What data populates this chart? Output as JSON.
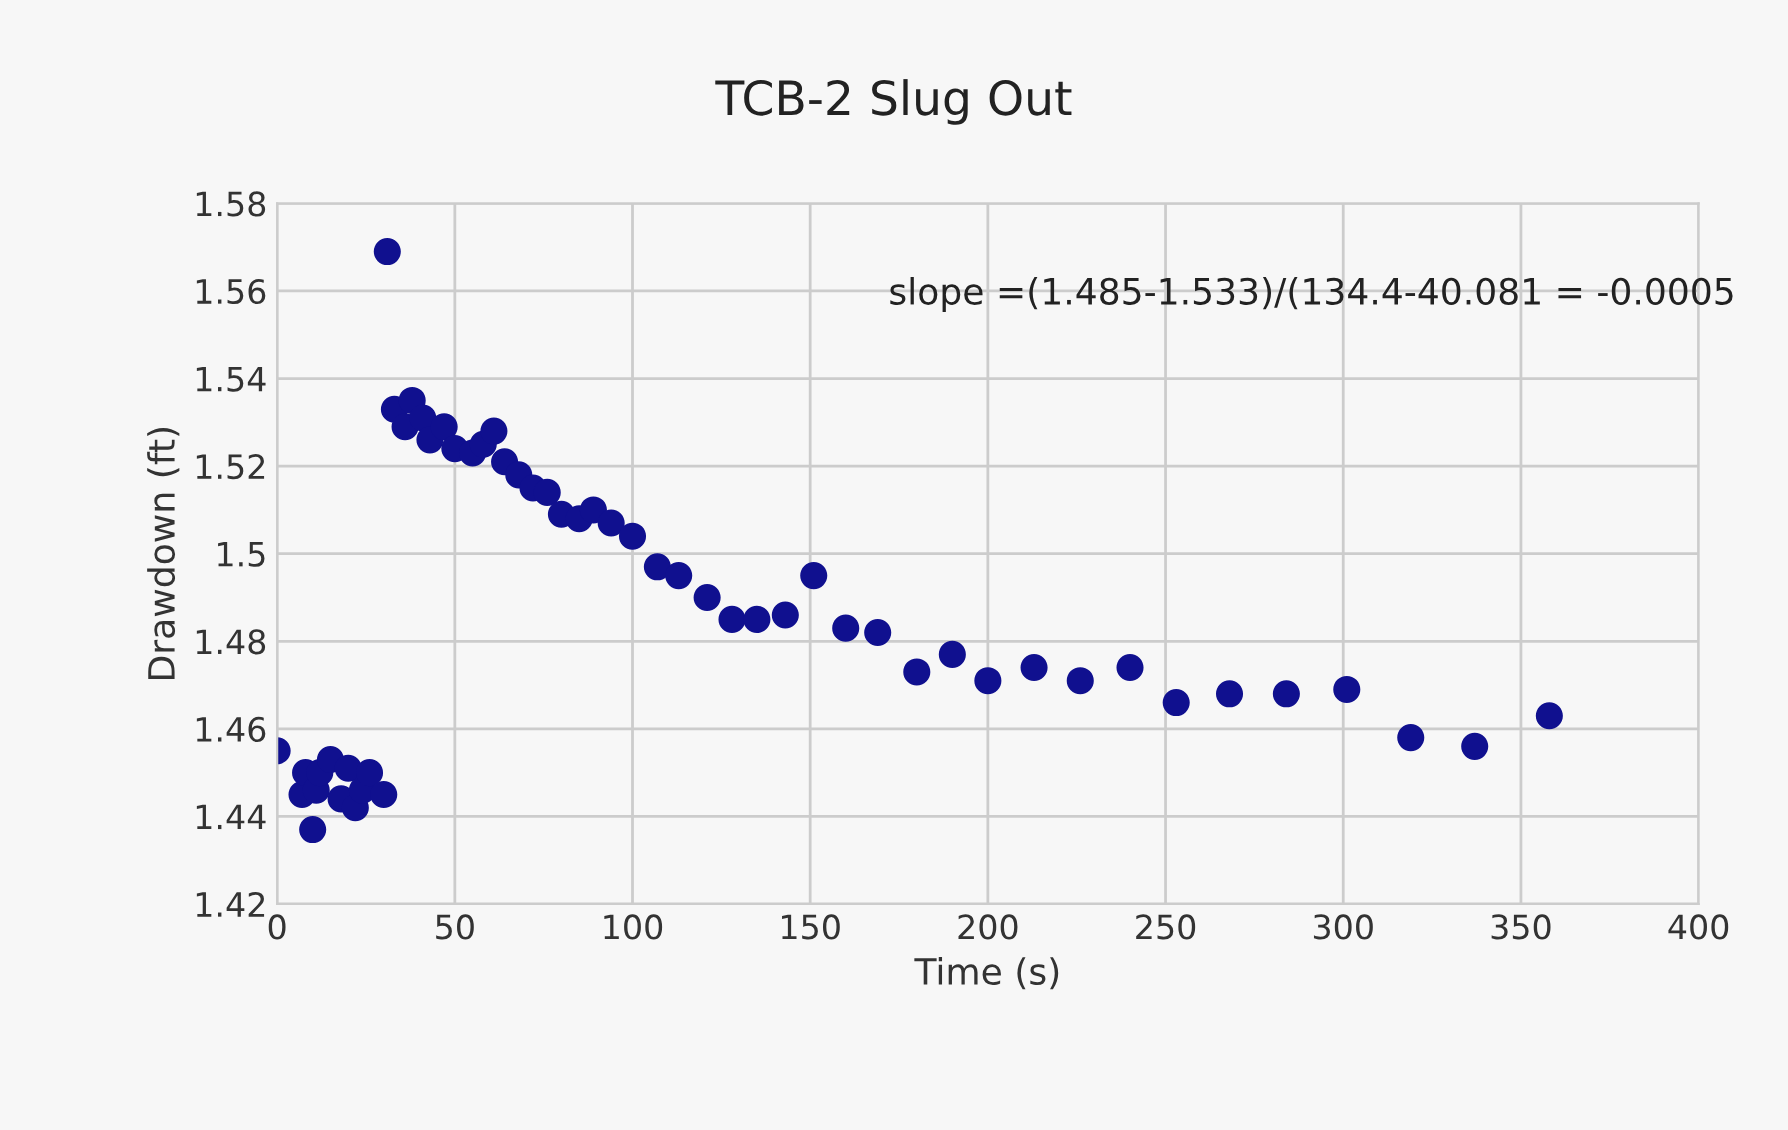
{
  "chart_data": {
    "type": "scatter",
    "title": "TCB-2 Slug Out",
    "xlabel": "Time (s)",
    "ylabel": "Drawdown (ft)",
    "annotations": [
      "slope =(1.485-1.533)/(134.4-40.081 = -0.0005"
    ],
    "x": [
      0,
      7,
      8,
      10,
      11,
      12,
      15,
      18,
      20,
      22,
      24,
      26,
      30,
      31,
      33,
      36,
      38,
      41,
      43,
      47,
      50,
      55,
      58,
      61,
      64,
      68,
      72,
      76,
      80,
      85,
      89,
      94,
      100,
      107,
      113,
      121,
      128,
      135,
      143,
      151,
      160,
      169,
      180,
      190,
      200,
      213,
      226,
      240,
      253,
      268,
      284,
      301,
      319,
      337,
      358
    ],
    "series": [
      {
        "color": "#10108f",
        "values": [
          1.455,
          1.445,
          1.45,
          1.437,
          1.446,
          1.45,
          1.453,
          1.444,
          1.451,
          1.442,
          1.446,
          1.45,
          1.445,
          1.569,
          1.533,
          1.529,
          1.535,
          1.531,
          1.526,
          1.529,
          1.524,
          1.523,
          1.525,
          1.528,
          1.521,
          1.518,
          1.515,
          1.514,
          1.509,
          1.508,
          1.51,
          1.507,
          1.504,
          1.497,
          1.495,
          1.49,
          1.485,
          1.485,
          1.486,
          1.495,
          1.483,
          1.482,
          1.473,
          1.477,
          1.471,
          1.474,
          1.471,
          1.474,
          1.466,
          1.468,
          1.468,
          1.469,
          1.458,
          1.456,
          1.463
        ]
      }
    ],
    "marker": "circle",
    "xlim": [
      0,
      400
    ],
    "xticks": [
      0,
      50,
      100,
      150,
      200,
      250,
      300,
      350,
      400
    ],
    "ylim": [
      1.42,
      1.58
    ],
    "yticks": [
      {
        "value": 1.42,
        "label": "1.42"
      },
      {
        "value": 1.44,
        "label": "1.44"
      },
      {
        "value": 1.46,
        "label": "1.46"
      },
      {
        "value": 1.48,
        "label": "1.48"
      },
      {
        "value": 1.5,
        "label": "1.5"
      },
      {
        "value": 1.52,
        "label": "1.52"
      },
      {
        "value": 1.54,
        "label": "1.54"
      },
      {
        "value": 1.56,
        "label": "1.56"
      },
      {
        "value": 1.58,
        "label": "1.58"
      }
    ],
    "grid": true
  }
}
